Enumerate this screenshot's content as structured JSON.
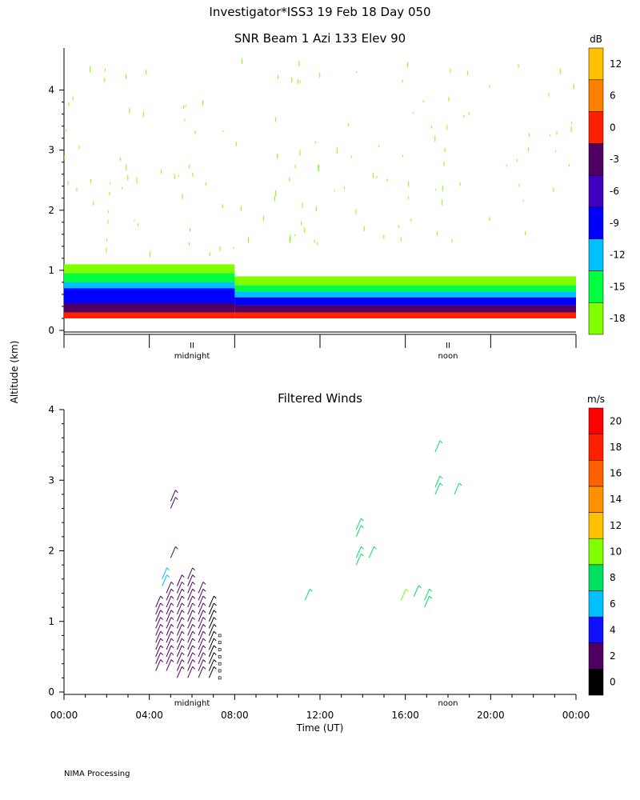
{
  "header": {
    "line1": "Investigator*ISS3  19 Feb 18 Day 050",
    "line2": "SNR Beam 1 Azi 133 Elev 90"
  },
  "footer": {
    "processing": "NIMA Processing"
  },
  "shared_ylabel": "Altitude (km)",
  "chart_data": [
    {
      "type": "heatmap",
      "title": "SNR Beam 1 Azi 133 Elev 90",
      "ylim": [
        0,
        4.7
      ],
      "yticks": [
        0,
        1,
        2,
        3,
        4
      ],
      "xlim": [
        0,
        24
      ],
      "x_marker_labels": [
        {
          "x": 6,
          "label": "midnight"
        },
        {
          "x": 18,
          "label": "noon"
        }
      ],
      "colorbar": {
        "unit": "dB",
        "ticks": [
          12,
          6,
          0,
          -3,
          -6,
          -9,
          -12,
          -15,
          -18
        ],
        "colors": [
          "#7fff00",
          "#00ff40",
          "#00c0ff",
          "#0000ff",
          "#4000c0",
          "#500060",
          "#ff2000",
          "#ff8000",
          "#ffc000"
        ]
      },
      "layers": [
        {
          "color": "#ff2000",
          "label": "0 to 6 dB",
          "ymin": 0.2,
          "ymax": 0.3,
          "ymax_before_8h": 0.3
        },
        {
          "color": "#500060",
          "label": "-3 to 0 dB",
          "ymin": 0.3,
          "ymax": 0.42,
          "ymax_before_8h": 0.45
        },
        {
          "color": "#0000ff",
          "label": "-9 to -6 dB",
          "ymin": 0.42,
          "ymax": 0.55,
          "ymax_before_8h": 0.7
        },
        {
          "color": "#00c0ff",
          "label": "-12 to -9 dB",
          "ymin": 0.55,
          "ymax": 0.65,
          "ymax_before_8h": 0.8
        },
        {
          "color": "#00ff40",
          "label": "-15 to -12 dB",
          "ymin": 0.65,
          "ymax": 0.75,
          "ymax_before_8h": 0.95
        },
        {
          "color": "#7fff00",
          "label": "-18 to -15 dB",
          "ymin": 0.75,
          "ymax": 0.9,
          "ymax_before_8h": 1.1
        }
      ]
    },
    {
      "type": "scatter",
      "title": "Filtered Winds",
      "xlabel": "Time (UT)",
      "ylim": [
        0,
        4
      ],
      "yticks": [
        0,
        1,
        2,
        3,
        4
      ],
      "xlim": [
        0,
        24
      ],
      "xticks": [
        {
          "x": 0,
          "label": "00:00"
        },
        {
          "x": 4,
          "label": "04:00"
        },
        {
          "x": 8,
          "label": "08:00"
        },
        {
          "x": 12,
          "label": "12:00"
        },
        {
          "x": 16,
          "label": "16:00"
        },
        {
          "x": 20,
          "label": "20:00"
        },
        {
          "x": 24,
          "label": "00:00"
        }
      ],
      "x_marker_labels": [
        {
          "x": 6,
          "label": "midnight"
        },
        {
          "x": 18,
          "label": "noon"
        }
      ],
      "colorbar": {
        "unit": "m/s",
        "ticks": [
          0,
          2,
          4,
          6,
          8,
          10,
          12,
          14,
          16,
          18,
          20
        ],
        "colors": [
          "#000000",
          "#500060",
          "#1010ff",
          "#00c0ff",
          "#00e060",
          "#7fff00",
          "#ffc000",
          "#ff9000",
          "#ff6000",
          "#ff2000",
          "#ff0000"
        ]
      },
      "barbs": [
        {
          "x": 4.3,
          "ys": [
            0.3,
            0.4,
            0.5,
            0.6,
            0.7,
            0.8,
            0.9,
            1.0,
            1.1,
            1.2
          ],
          "speed": 3
        },
        {
          "x": 4.8,
          "ys": [
            0.3,
            0.4,
            0.5,
            0.6,
            0.7,
            0.8,
            0.9,
            1.0,
            1.1,
            1.2,
            1.3,
            1.4
          ],
          "speed": 3
        },
        {
          "x": 5.3,
          "ys": [
            0.2,
            0.3,
            0.4,
            0.5,
            0.6,
            0.7,
            0.8,
            0.9,
            1.0,
            1.1,
            1.2,
            1.3,
            1.4,
            1.5
          ],
          "speed": 3
        },
        {
          "x": 5.8,
          "ys": [
            0.2,
            0.3,
            0.4,
            0.5,
            0.6,
            0.7,
            0.8,
            0.9,
            1.0,
            1.1,
            1.2,
            1.3,
            1.4,
            1.5,
            1.6
          ],
          "speed": 3
        },
        {
          "x": 6.3,
          "ys": [
            0.2,
            0.3,
            0.4,
            0.5,
            0.6,
            0.7,
            0.8,
            0.9,
            1.0,
            1.1,
            1.2,
            1.3,
            1.4
          ],
          "speed": 2
        },
        {
          "x": 6.8,
          "ys": [
            0.2,
            0.3,
            0.4,
            0.5,
            0.6,
            0.7,
            0.8,
            0.9,
            1.0,
            1.1,
            1.2
          ],
          "speed": 1
        },
        {
          "x": 7.3,
          "ys": [
            0.2,
            0.3,
            0.4,
            0.5,
            0.6,
            0.7,
            0.8
          ],
          "speed": 0
        },
        {
          "x": 5.0,
          "ys": [
            1.9,
            2.6,
            2.7
          ],
          "speed": 3
        },
        {
          "x": 4.6,
          "ys": [
            1.5,
            1.6
          ],
          "speed": 7
        },
        {
          "x": 11.3,
          "ys": [
            1.3
          ],
          "speed": 9
        },
        {
          "x": 13.7,
          "ys": [
            1.8,
            1.9,
            2.2,
            2.3
          ],
          "speed": 9
        },
        {
          "x": 14.3,
          "ys": [
            1.9
          ],
          "speed": 9
        },
        {
          "x": 15.8,
          "ys": [
            1.3
          ],
          "speed": 10
        },
        {
          "x": 16.4,
          "ys": [
            1.35
          ],
          "speed": 9
        },
        {
          "x": 16.9,
          "ys": [
            1.2,
            1.3
          ],
          "speed": 9
        },
        {
          "x": 17.4,
          "ys": [
            2.8,
            2.9,
            3.4
          ],
          "speed": 9
        },
        {
          "x": 18.3,
          "ys": [
            2.8
          ],
          "speed": 9
        }
      ]
    }
  ]
}
